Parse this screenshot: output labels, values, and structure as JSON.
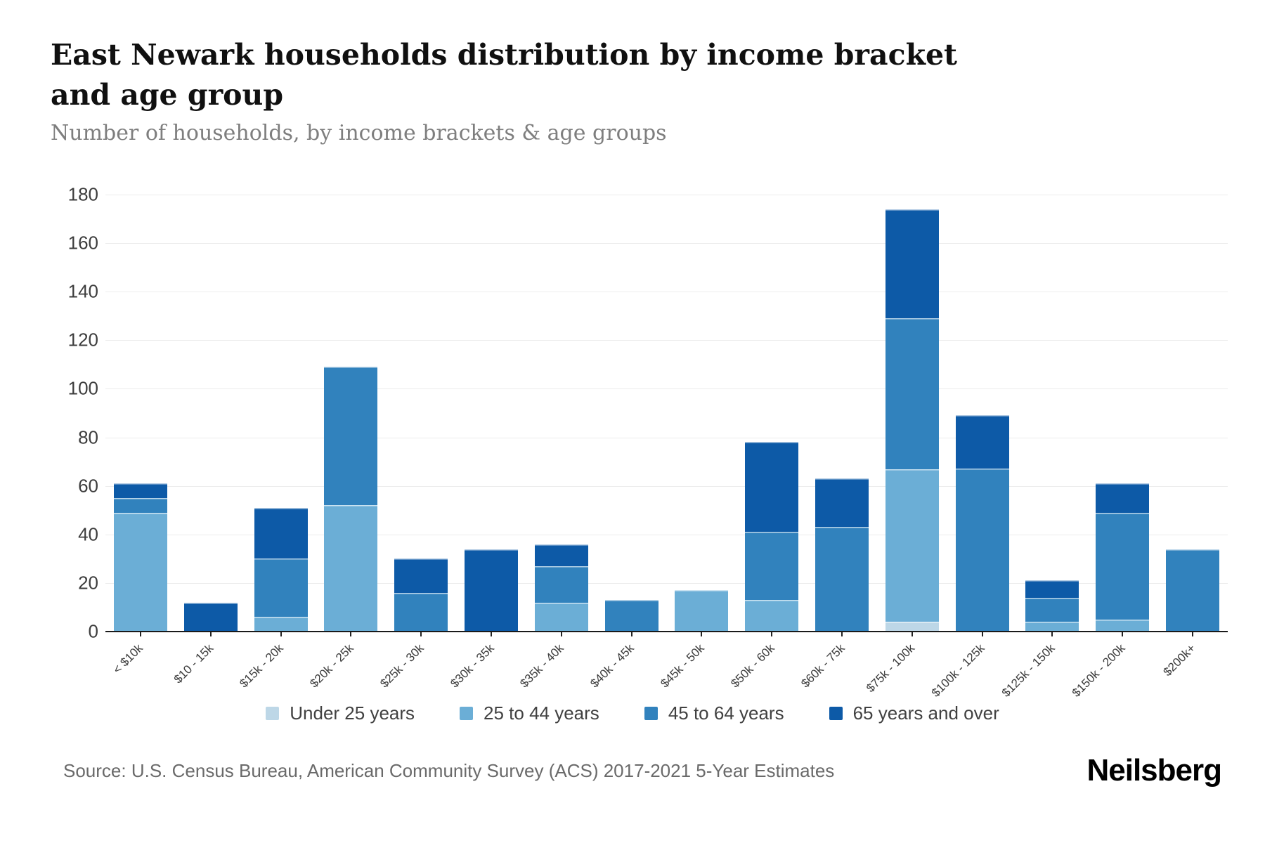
{
  "page": {
    "title": "East Newark households distribution by income bracket and age group",
    "subtitle": "Number of households, by income brackets & age groups",
    "source": "Source: U.S. Census Bureau, American Community Survey (ACS) 2017-2021 5-Year Estimates",
    "brand": "Neilsberg"
  },
  "chart_data": {
    "type": "bar",
    "stacked": true,
    "title": "East Newark households distribution by income bracket and age group",
    "subtitle": "Number of households, by income brackets & age groups",
    "xlabel": "",
    "ylabel": "Number of households",
    "ylim": [
      0,
      180
    ],
    "yticks": [
      0,
      20,
      40,
      60,
      80,
      100,
      120,
      140,
      160,
      180
    ],
    "grid": true,
    "legend_position": "bottom",
    "categories": [
      "< $10k",
      "$10 - 15k",
      "$15k - 20k",
      "$20k - 25k",
      "$25k - 30k",
      "$30k - 35k",
      "$35k - 40k",
      "$40k - 45k",
      "$45k - 50k",
      "$50k - 60k",
      "$60k - 75k",
      "$75k - 100k",
      "$100k - 125k",
      "$125k - 150k",
      "$150k - 200k",
      "$200k+"
    ],
    "series": [
      {
        "name": "Under 25 years",
        "color": "#bdd7e7",
        "values": [
          0,
          0,
          0,
          0,
          0,
          0,
          0,
          0,
          0,
          0,
          0,
          4,
          0,
          0,
          0,
          0
        ]
      },
      {
        "name": "25 to 44 years",
        "color": "#6baed6",
        "values": [
          49,
          0,
          6,
          52,
          0,
          0,
          12,
          0,
          17,
          13,
          0,
          63,
          0,
          4,
          5,
          0
        ]
      },
      {
        "name": "45 to 64 years",
        "color": "#3182bd",
        "values": [
          6,
          0,
          24,
          57,
          16,
          0,
          15,
          13,
          0,
          28,
          43,
          62,
          67,
          10,
          44,
          34
        ]
      },
      {
        "name": "65 years and over",
        "color": "#0d5aa7",
        "values": [
          6,
          12,
          21,
          0,
          14,
          34,
          9,
          0,
          0,
          37,
          20,
          45,
          22,
          7,
          12,
          0
        ]
      }
    ],
    "totals": [
      61,
      12,
      51,
      109,
      30,
      34,
      36,
      13,
      17,
      78,
      63,
      174,
      89,
      21,
      61,
      34
    ]
  }
}
